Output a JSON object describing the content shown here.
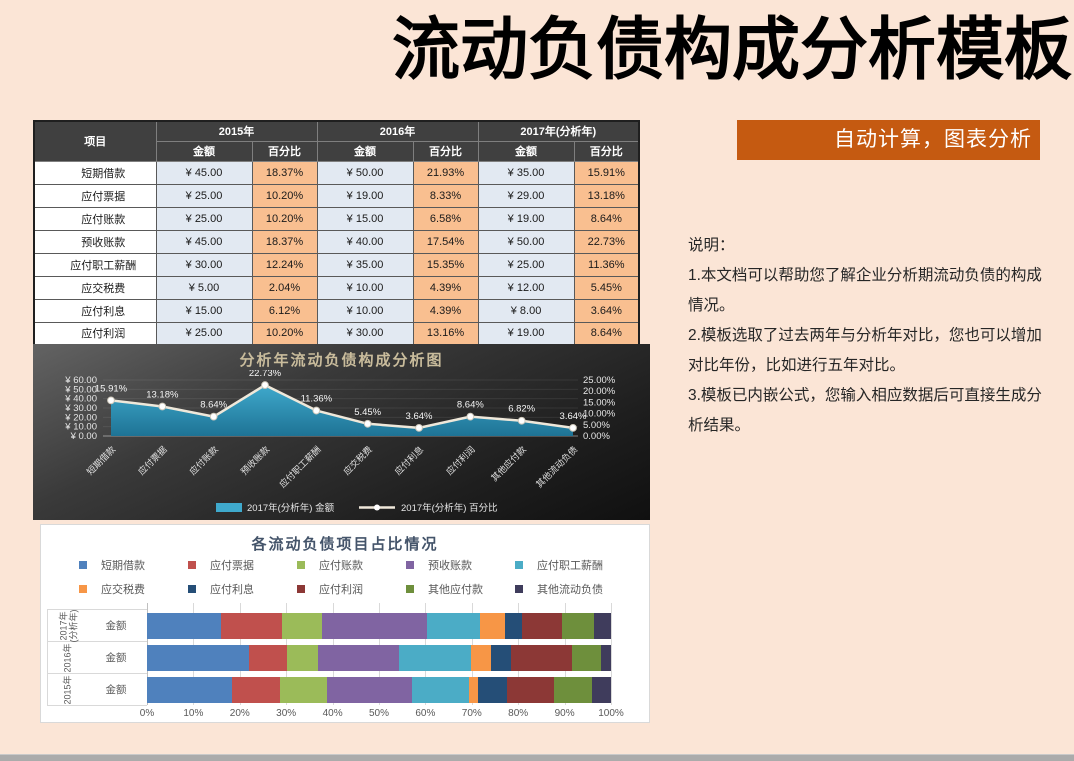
{
  "page": {
    "title": "流动负债构成分析模板",
    "banner": "自动计算，图表分析",
    "notes": [
      "说明：",
      "1.本文档可以帮助您了解企业分析期流动负债的构成情况。",
      "2.模板选取了过去两年与分析年对比，您也可以增加对比年份，比如进行五年对比。",
      "3.模板已内嵌公式，您输入相应数据后可直接生成分析结果。"
    ]
  },
  "colors": {
    "page_bg": "#FBE5D6",
    "accent_orange": "#C55A11",
    "table_header_bg": "#404040",
    "amount_cell_bg": "#E2E9F2",
    "percent_cell_bg": "#F9BF90",
    "area_fill_top": "#3FA9CC",
    "area_fill_bottom": "#1E7395",
    "pct_line": "#EFE8DA",
    "bar_title": "#44546A"
  },
  "table": {
    "item_header": "项目",
    "year_headers": [
      "2015年",
      "2016年",
      "2017年(分析年)"
    ],
    "sub_headers": [
      "金额",
      "百分比"
    ],
    "rows": [
      {
        "item": "短期借款",
        "values": [
          "¥ 45.00",
          "18.37%",
          "¥ 50.00",
          "21.93%",
          "¥ 35.00",
          "15.91%"
        ]
      },
      {
        "item": "应付票据",
        "values": [
          "¥ 25.00",
          "10.20%",
          "¥ 19.00",
          "8.33%",
          "¥ 29.00",
          "13.18%"
        ]
      },
      {
        "item": "应付账款",
        "values": [
          "¥ 25.00",
          "10.20%",
          "¥ 15.00",
          "6.58%",
          "¥ 19.00",
          "8.64%"
        ]
      },
      {
        "item": "预收账款",
        "values": [
          "¥ 45.00",
          "18.37%",
          "¥ 40.00",
          "17.54%",
          "¥ 50.00",
          "22.73%"
        ]
      },
      {
        "item": "应付职工薪酬",
        "values": [
          "¥ 30.00",
          "12.24%",
          "¥ 35.00",
          "15.35%",
          "¥ 25.00",
          "11.36%"
        ]
      },
      {
        "item": "应交税费",
        "values": [
          "¥ 5.00",
          "2.04%",
          "¥ 10.00",
          "4.39%",
          "¥ 12.00",
          "5.45%"
        ]
      },
      {
        "item": "应付利息",
        "values": [
          "¥ 15.00",
          "6.12%",
          "¥ 10.00",
          "4.39%",
          "¥ 8.00",
          "3.64%"
        ]
      },
      {
        "item": "应付利润",
        "values": [
          "¥ 25.00",
          "10.20%",
          "¥ 30.00",
          "13.16%",
          "¥ 19.00",
          "8.64%"
        ]
      }
    ]
  },
  "chart_data": [
    {
      "type": "area",
      "title": "分析年流动负债构成分析图",
      "categories": [
        "短期借款",
        "应付票据",
        "应付账款",
        "预收账款",
        "应付职工薪酬",
        "应交税费",
        "应付利息",
        "应付利润",
        "其他应付款",
        "其他流动负债"
      ],
      "series": [
        {
          "name": "2017年(分析年) 金额",
          "type": "area",
          "axis": "left",
          "values": [
            35,
            29,
            19,
            50,
            25,
            12,
            8,
            19,
            15,
            8
          ]
        },
        {
          "name": "2017年(分析年) 百分比",
          "type": "line",
          "axis": "right",
          "values": [
            15.91,
            13.18,
            8.64,
            22.73,
            11.36,
            5.45,
            3.64,
            8.64,
            6.82,
            3.64
          ]
        }
      ],
      "data_labels": [
        "15.91%",
        "13.18%",
        "8.64%",
        "22.73%",
        "11.36%",
        "5.45%",
        "3.64%",
        "8.64%",
        "6.82%",
        "3.64%"
      ],
      "left_axis": {
        "min": 0,
        "max": 60,
        "step": 10,
        "tick_labels": [
          "¥ 60.00",
          "¥ 50.00",
          "¥ 40.00",
          "¥ 30.00",
          "¥ 20.00",
          "¥ 10.00",
          "¥ 0.00"
        ]
      },
      "right_axis": {
        "min": 0,
        "max": 25,
        "step": 5,
        "tick_labels": [
          "25.00%",
          "20.00%",
          "15.00%",
          "10.00%",
          "5.00%",
          "0.00%"
        ]
      },
      "legend_position": "bottom",
      "grid": true
    },
    {
      "type": "bar",
      "subtype": "stacked-horizontal-100pct",
      "title": "各流动负债项目占比情况",
      "series": [
        {
          "name": "短期借款",
          "color": "#4F81BD"
        },
        {
          "name": "应付票据",
          "color": "#C0504D"
        },
        {
          "name": "应付账款",
          "color": "#9BBB59"
        },
        {
          "name": "预收账款",
          "color": "#8064A2"
        },
        {
          "name": "应付职工薪酬",
          "color": "#4BACC6"
        },
        {
          "name": "应交税费",
          "color": "#F79646"
        },
        {
          "name": "应付利息",
          "color": "#254E77"
        },
        {
          "name": "应付利润",
          "color": "#8C3836"
        },
        {
          "name": "其他应付款",
          "color": "#6E8F3C"
        },
        {
          "name": "其他流动负债",
          "color": "#3F3C5C"
        }
      ],
      "rows": [
        {
          "year_lines": [
            "2017年",
            "(分析年)"
          ],
          "label": "金额",
          "amounts": [
            35,
            29,
            19,
            50,
            25,
            12,
            8,
            19,
            15,
            8
          ],
          "percents": [
            15.91,
            13.18,
            8.64,
            22.73,
            11.36,
            5.45,
            3.64,
            8.64,
            6.82,
            3.64
          ]
        },
        {
          "year_lines": [
            "2016年"
          ],
          "label": "金额",
          "amounts": [
            50,
            19,
            15,
            40,
            35,
            10,
            10,
            30,
            14,
            5
          ],
          "percents": [
            21.93,
            8.33,
            6.58,
            17.54,
            15.35,
            4.39,
            4.39,
            13.16,
            6.14,
            2.19
          ]
        },
        {
          "year_lines": [
            "2015年"
          ],
          "label": "金额",
          "amounts": [
            45,
            25,
            25,
            45,
            30,
            5,
            15,
            25,
            20,
            10
          ],
          "percents": [
            18.37,
            10.2,
            10.2,
            18.37,
            12.24,
            2.04,
            6.12,
            10.2,
            8.16,
            4.08
          ]
        }
      ],
      "x_ticks": [
        "0%",
        "10%",
        "20%",
        "30%",
        "40%",
        "50%",
        "60%",
        "70%",
        "80%",
        "90%",
        "100%"
      ],
      "xlim": [
        0,
        100
      ],
      "grid": true,
      "legend_position": "top"
    }
  ]
}
